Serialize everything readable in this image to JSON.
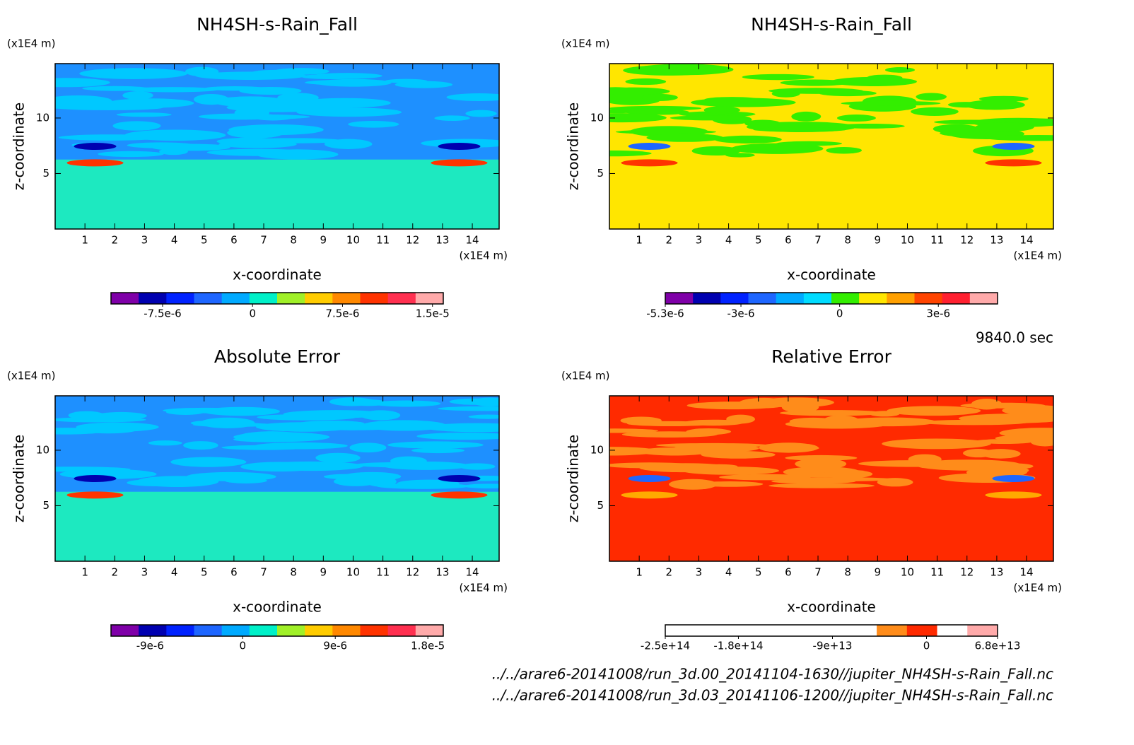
{
  "chart_data": [
    {
      "type": "contour",
      "title": "NH4SH-s-Rain_Fall",
      "y_unit": "(x1E4 m)",
      "x_unit": "(x1E4 m)",
      "x_label": "x-coordinate",
      "y_label": "z-coordinate",
      "xlim": [
        0,
        14.9
      ],
      "ylim": [
        0,
        14.9
      ],
      "xticks": [
        1,
        2,
        3,
        4,
        5,
        6,
        7,
        8,
        9,
        10,
        11,
        12,
        13,
        14
      ],
      "yticks": [
        5,
        10
      ],
      "colorbar": {
        "lim": [
          -1.18e-05,
          1.59e-05
        ],
        "colors": [
          "#7f00a8",
          "#0000b0",
          "#0022ff",
          "#1e66ff",
          "#00aaff",
          "#00f0c8",
          "#a0f028",
          "#ffcc00",
          "#ff8800",
          "#ff3300",
          "#ff3050",
          "#ffaaaa"
        ],
        "ticks": [
          {
            "value": -7.5e-06,
            "label": "-7.5e-6"
          },
          0,
          {
            "value": 7.5e-06,
            "label": "7.5e-6"
          },
          {
            "value": 1.5e-05,
            "label": "1.5e-5"
          }
        ]
      }
    },
    {
      "type": "contour",
      "title": "NH4SH-s-Rain_Fall",
      "y_unit": "(x1E4 m)",
      "x_unit": "(x1E4 m)",
      "x_label": "x-coordinate",
      "y_label": "z-coordinate",
      "xlim": [
        0,
        14.9
      ],
      "ylim": [
        0,
        14.9
      ],
      "xticks": [
        1,
        2,
        3,
        4,
        5,
        6,
        7,
        8,
        9,
        10,
        11,
        12,
        13,
        14
      ],
      "yticks": [
        5,
        10
      ],
      "colorbar": {
        "lim": [
          -5.3e-06,
          4.8e-06
        ],
        "colors": [
          "#7f00a8",
          "#0000b0",
          "#0022ff",
          "#1e66ff",
          "#00aaff",
          "#00dcff",
          "#33ee00",
          "#ffe600",
          "#ffa000",
          "#ff4400",
          "#ff2030",
          "#ffaaaa"
        ],
        "ticks": [
          {
            "value": -5.3e-06,
            "label": "-5.3e-6"
          },
          {
            "value": -3e-06,
            "label": "-3e-6"
          },
          0,
          {
            "value": 3e-06,
            "label": "3e-6"
          }
        ]
      }
    },
    {
      "type": "contour",
      "title": "Absolute Error",
      "y_unit": "(x1E4 m)",
      "x_unit": "(x1E4 m)",
      "x_label": "x-coordinate",
      "y_label": "z-coordinate",
      "xlim": [
        0,
        14.9
      ],
      "ylim": [
        0,
        14.9
      ],
      "xticks": [
        1,
        2,
        3,
        4,
        5,
        6,
        7,
        8,
        9,
        10,
        11,
        12,
        13,
        14
      ],
      "yticks": [
        5,
        10
      ],
      "colorbar": {
        "lim": [
          -1.28e-05,
          1.95e-05
        ],
        "colors": [
          "#7f00a8",
          "#0000b0",
          "#0022ff",
          "#1e66ff",
          "#00aaff",
          "#00f0c8",
          "#a0f028",
          "#ffcc00",
          "#ff8800",
          "#ff3300",
          "#ff3050",
          "#ffaaaa"
        ],
        "ticks": [
          {
            "value": -9e-06,
            "label": "-9e-6"
          },
          0,
          {
            "value": 9e-06,
            "label": "9e-6"
          },
          {
            "value": 1.8e-05,
            "label": "1.8e-5"
          }
        ]
      }
    },
    {
      "type": "contour",
      "title": "Relative Error",
      "y_unit": "(x1E4 m)",
      "x_unit": "(x1E4 m)",
      "x_label": "x-coordinate",
      "y_label": "z-coordinate",
      "xlim": [
        0,
        14.9
      ],
      "ylim": [
        0,
        14.9
      ],
      "xticks": [
        1,
        2,
        3,
        4,
        5,
        6,
        7,
        8,
        9,
        10,
        11,
        12,
        13,
        14
      ],
      "yticks": [
        5,
        10
      ],
      "colorbar": {
        "lim": [
          -250000000000000,
          68000000000000
        ],
        "colors": [
          "#ffffff",
          "#ffffff",
          "#ffffff",
          "#ffffff",
          "#ffffff",
          "#ffffff",
          "#ffffff",
          "#ff8c1a",
          "#ff2a00",
          "#ffffff",
          "#ffaaaa"
        ],
        "ticks": [
          {
            "value": -250000000000000,
            "label": "-2.5e+14"
          },
          {
            "value": -180000000000000,
            "label": "-1.8e+14"
          },
          {
            "value": -90000000000000,
            "label": "-9e+13"
          },
          0,
          {
            "value": 68000000000000,
            "label": "6.8e+13"
          }
        ]
      }
    }
  ],
  "time_label": "9840.0 sec",
  "files": [
    "../../arare6-20141008/run_3d.00_20141104-1630//jupiter_NH4SH-s-Rain_Fall.nc",
    "../../arare6-20141008/run_3d.03_20141106-1200//jupiter_NH4SH-s-Rain_Fall.nc"
  ]
}
